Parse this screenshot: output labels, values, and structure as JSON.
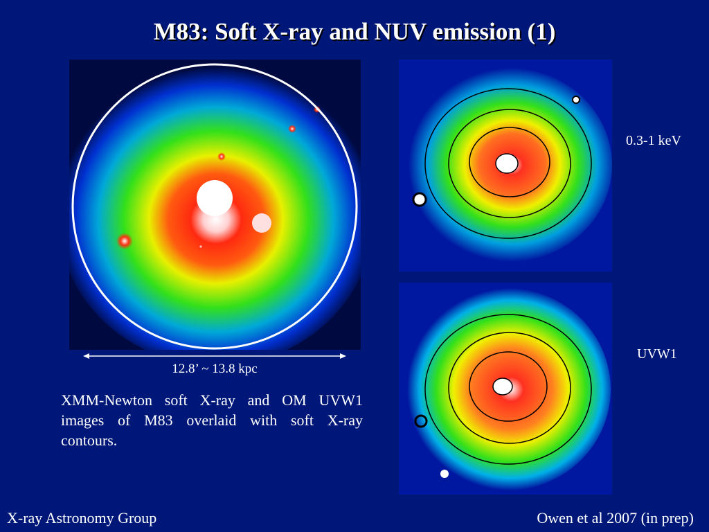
{
  "slide": {
    "title": "M83: Soft X-ray and NUV emission (1)",
    "scale_label": "12.8’ ~ 13.8 kpc",
    "caption": "XMM-Newton soft X-ray and OM UVW1 images of M83 overlaid with soft X-ray contours.",
    "band_labels": {
      "xray": "0.3-1 keV",
      "uvw1": "UVW1"
    },
    "footer": {
      "left": "X-ray Astronomy Group",
      "right": "Owen et al 2007 (in prep)"
    }
  },
  "colors": {
    "background": "#00177a",
    "image_low": "#0019b0",
    "image_mid": "#33e01a",
    "image_high": "#ff2a10",
    "image_peak": "#ffffff"
  },
  "images": {
    "main": "M83 soft X-ray image with white aperture circle",
    "xray": "M83 0.3-1 keV image with contours",
    "uvw1": "M83 UVW1 image with soft X-ray contours"
  }
}
